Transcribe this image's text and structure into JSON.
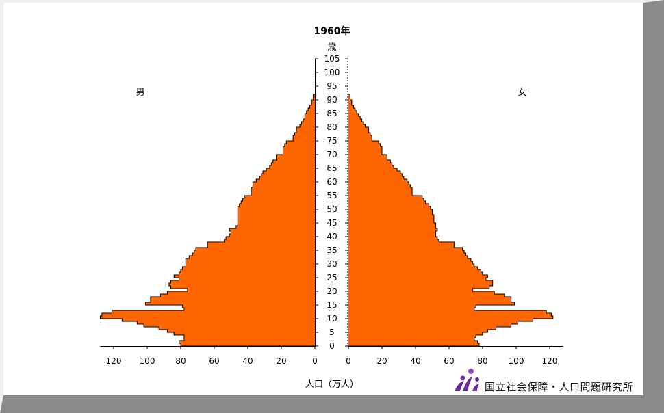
{
  "chart_data": {
    "type": "bar",
    "orientation": "horizontal-pyramid",
    "title": "1960年",
    "y_unit_label": "歳",
    "xlabel": "人口（万人）",
    "left_label": "男",
    "right_label": "女",
    "age_ticks": [
      0,
      5,
      10,
      15,
      20,
      25,
      30,
      35,
      40,
      45,
      50,
      55,
      60,
      65,
      70,
      75,
      80,
      85,
      90,
      95,
      100,
      105
    ],
    "x_ticks": [
      0,
      20,
      40,
      60,
      80,
      100,
      120
    ],
    "xlim": [
      0,
      128
    ],
    "ylim": [
      0,
      105
    ],
    "bar_color": "#ff6600",
    "series": [
      {
        "name": "男",
        "ages_start": 0,
        "values": [
          80,
          81,
          78,
          78,
          84,
          88,
          93,
          102,
          106,
          115,
          128,
          127,
          121,
          78,
          79,
          101,
          98,
          98,
          92,
          88,
          76,
          86,
          87,
          86,
          81,
          84,
          81,
          80,
          79,
          77,
          77,
          77,
          75,
          73,
          72,
          71,
          64,
          64,
          54,
          53,
          51,
          50,
          51,
          47,
          46,
          46,
          46,
          46,
          46,
          46,
          46,
          45,
          44,
          43,
          42,
          38,
          38,
          38,
          37,
          37,
          35,
          33,
          32,
          31,
          29,
          27,
          26,
          25,
          23,
          23,
          19,
          19,
          19,
          18,
          17,
          13,
          13,
          12,
          11,
          11,
          9,
          8,
          7,
          6,
          6,
          5,
          4,
          3,
          2,
          2,
          1,
          1
        ]
      },
      {
        "name": "女",
        "ages_start": 0,
        "values": [
          78,
          77,
          75,
          76,
          80,
          83,
          88,
          97,
          101,
          110,
          122,
          121,
          118,
          75,
          76,
          99,
          97,
          97,
          93,
          87,
          74,
          84,
          86,
          86,
          82,
          83,
          80,
          79,
          77,
          75,
          74,
          73,
          71,
          70,
          69,
          68,
          63,
          63,
          54,
          53,
          52,
          52,
          53,
          52,
          52,
          51,
          51,
          51,
          50,
          50,
          49,
          48,
          46,
          45,
          44,
          38,
          38,
          38,
          37,
          36,
          35,
          33,
          32,
          31,
          29,
          27,
          26,
          25,
          23,
          23,
          20,
          20,
          20,
          19,
          18,
          14,
          14,
          13,
          12,
          12,
          10,
          9,
          8,
          7,
          6,
          5,
          4,
          3,
          2,
          2,
          1,
          1
        ]
      }
    ]
  },
  "footer": {
    "organization": "国立社会保障・人口問題研究所",
    "colors": {
      "logo_purple": "#6a2ba0",
      "logo_dot": "#8a4cc0"
    }
  }
}
